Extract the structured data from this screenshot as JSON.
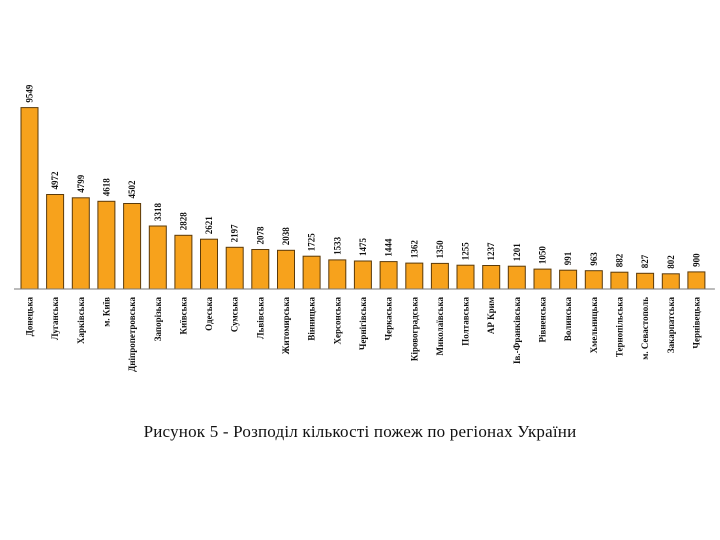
{
  "chart_data": {
    "type": "bar",
    "title": "",
    "xlabel": "",
    "ylabel": "",
    "ylim": [
      0,
      10000
    ],
    "grid": false,
    "legend": "none",
    "colors": {
      "bar_fill": "#F7A21C",
      "bar_stroke": "#5a3a0a",
      "axis": "#777777",
      "text": "#111111"
    },
    "categories": [
      "Донецька",
      "Луганська",
      "Харківська",
      "м. Київ",
      "Дніпропетровська",
      "Запорізька",
      "Київська",
      "Одеська",
      "Сумська",
      "Львівська",
      "Житомирська",
      "Вінницька",
      "Херсонська",
      "Чернігівська",
      "Черкаська",
      "Кіровоградська",
      "Миколаївська",
      "Полтавська",
      "АР Крим",
      "Ів.-Франківська",
      "Рівненська",
      "Волинська",
      "Хмельницька",
      "Тернопільська",
      "м. Севастополь",
      "Закарпатська",
      "Чернівецька"
    ],
    "values": [
      9549,
      4972,
      4799,
      4618,
      4502,
      3318,
      2828,
      2621,
      2197,
      2078,
      2038,
      1725,
      1533,
      1475,
      1444,
      1362,
      1350,
      1255,
      1237,
      1201,
      1050,
      991,
      963,
      882,
      827,
      802,
      900
    ]
  },
  "caption": "Рисунок 5 - Розподіл кількості пожеж по регіонах України"
}
